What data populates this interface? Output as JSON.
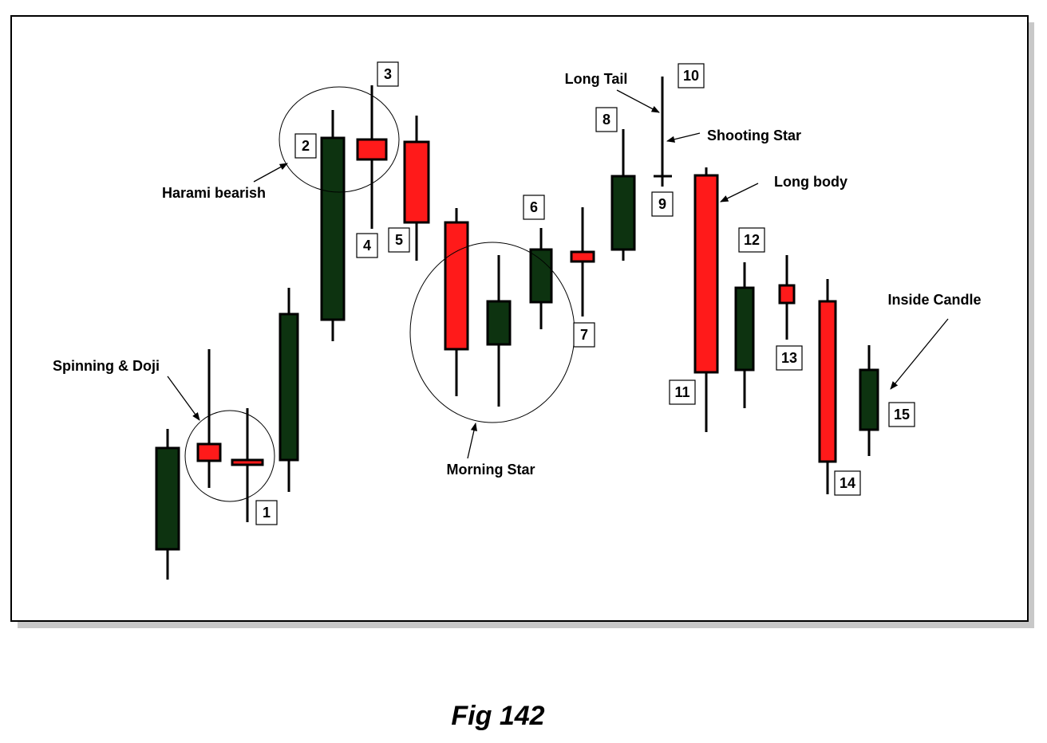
{
  "annotations": [
    "Spinning & Doji",
    "Harami bearish",
    "Morning Star",
    "Long Tail",
    "Shooting Star",
    "Long body",
    "Inside Candle"
  ],
  "labels": [
    "1",
    "2",
    "3",
    "4",
    "5",
    "6",
    "7",
    "8",
    "9",
    "10",
    "11",
    "12",
    "13",
    "14",
    "15"
  ],
  "caption": "Fig 142"
}
